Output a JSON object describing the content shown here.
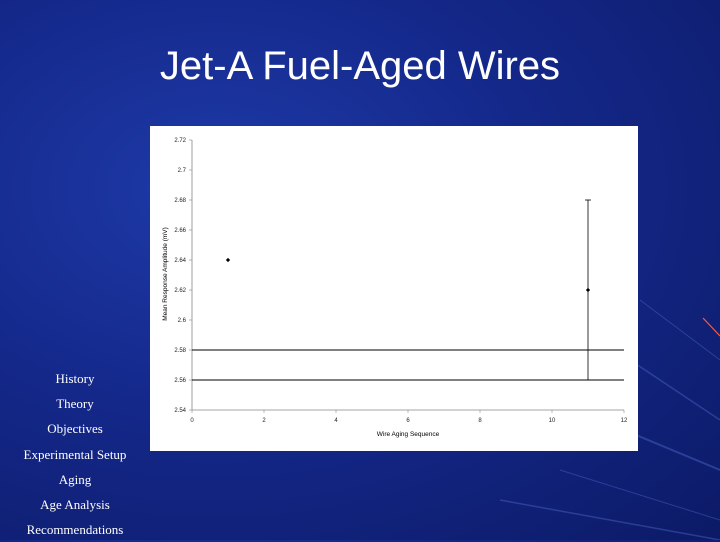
{
  "slide": {
    "title": "Jet-A Fuel-Aged Wires"
  },
  "nav": {
    "items": [
      "History",
      "Theory",
      "Objectives",
      "Experimental Setup",
      "Aging",
      "Age Analysis",
      "Recommendations"
    ]
  },
  "colors": {
    "background": "#14288a",
    "title_text": "#ffffff",
    "plot_background": "#ffffff",
    "markers": "#000000"
  },
  "chart_data": {
    "type": "scatter",
    "title": "",
    "xlabel": "Wire Aging Sequence",
    "ylabel": "Mean Response Amplitude (mV)",
    "xlim": [
      0,
      12
    ],
    "ylim": [
      2.54,
      2.72
    ],
    "x_ticks": [
      "0",
      "2",
      "4",
      "6",
      "8",
      "10",
      "12"
    ],
    "y_ticks": [
      "2.54",
      "2.56",
      "2.58",
      "2.6",
      "2.62",
      "2.64",
      "2.66",
      "2.68",
      "2.7",
      "2.72"
    ],
    "points": [
      {
        "x": 1,
        "y": 2.64
      },
      {
        "x": 11,
        "y": 2.62,
        "error_low": 2.56,
        "error_high": 2.68
      }
    ],
    "reference_lines": [
      2.58,
      2.56
    ],
    "grid": false,
    "legend": "none"
  }
}
